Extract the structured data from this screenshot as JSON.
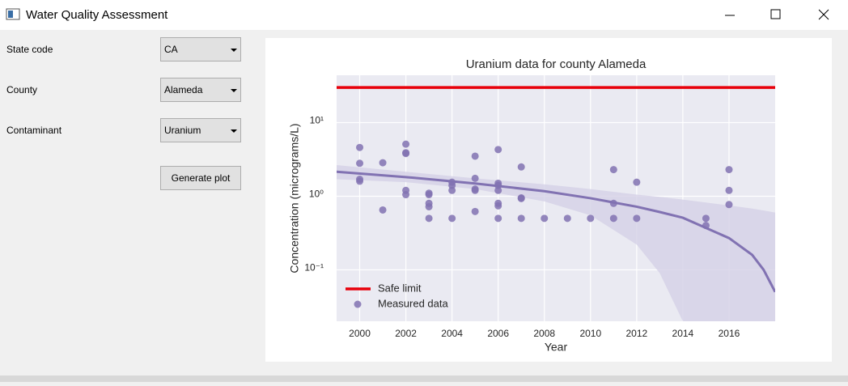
{
  "window": {
    "title": "Water Quality Assessment"
  },
  "form": {
    "fields": [
      {
        "label": "State code",
        "value": "CA"
      },
      {
        "label": "County",
        "value": "Alameda"
      },
      {
        "label": "Contaminant",
        "value": "Uranium"
      }
    ],
    "button": "Generate plot"
  },
  "chart_data": {
    "type": "scatter",
    "title": "Uranium data for county Alameda",
    "xlabel": "Year",
    "ylabel": "Concentration (micrograms/L)",
    "xlim": [
      1999,
      2018
    ],
    "xticks": [
      2000,
      2002,
      2004,
      2006,
      2008,
      2010,
      2012,
      2014,
      2016
    ],
    "ylim": [
      0.02,
      44
    ],
    "log_y": true,
    "grid": true,
    "legend": "lower left",
    "yticks": [
      {
        "value": 0.1,
        "label": "10⁻¹"
      },
      {
        "value": 1,
        "label": "10⁰"
      },
      {
        "value": 10,
        "label": "10¹"
      }
    ],
    "series": [
      {
        "name": "Safe limit",
        "type": "line",
        "color": "#e8000b",
        "x": [
          1999,
          2018
        ],
        "values": [
          30,
          30
        ]
      },
      {
        "name": "Measured data",
        "type": "scatter",
        "color": "#8172b2",
        "x": [
          2000,
          2000,
          2000,
          2000,
          2001,
          2001,
          2002,
          2002,
          2002,
          2002,
          2002,
          2003,
          2003,
          2003,
          2003,
          2003,
          2004,
          2004,
          2004,
          2004,
          2005,
          2005,
          2005,
          2005,
          2005,
          2006,
          2006,
          2006,
          2006,
          2006,
          2006,
          2006,
          2007,
          2007,
          2007,
          2007,
          2008,
          2009,
          2010,
          2011,
          2011,
          2011,
          2012,
          2012,
          2015,
          2015,
          2016,
          2016,
          2016
        ],
        "values": [
          4.6,
          2.8,
          1.7,
          1.6,
          2.85,
          0.65,
          5.1,
          3.9,
          3.8,
          1.2,
          1.05,
          1.1,
          1.05,
          0.8,
          0.72,
          0.5,
          1.55,
          1.4,
          1.2,
          0.5,
          3.5,
          1.75,
          1.25,
          1.2,
          0.62,
          4.3,
          1.5,
          1.4,
          1.2,
          0.8,
          0.74,
          0.5,
          2.5,
          0.95,
          0.93,
          0.5,
          0.5,
          0.5,
          0.5,
          2.3,
          0.8,
          0.5,
          1.55,
          0.5,
          0.5,
          0.4,
          2.3,
          1.2,
          0.77
        ]
      }
    ],
    "fit": {
      "color": "#8172b2",
      "band_color": "#d5d1e6",
      "x": [
        1999,
        2002,
        2005,
        2008,
        2010,
        2012,
        2013,
        2014,
        2016,
        2017,
        2017.5,
        2018
      ],
      "values": [
        2.15,
        1.82,
        1.49,
        1.17,
        0.94,
        0.72,
        0.61,
        0.51,
        0.27,
        0.16,
        0.1,
        0.05
      ],
      "lower": [
        1.7,
        1.55,
        1.25,
        0.85,
        0.55,
        0.22,
        0.09,
        0.02,
        -0.4,
        -0.6,
        -0.7,
        -0.9
      ],
      "upper": [
        2.65,
        2.15,
        1.75,
        1.45,
        1.25,
        1.05,
        0.98,
        0.9,
        0.75,
        0.68,
        0.64,
        0.6
      ]
    }
  }
}
